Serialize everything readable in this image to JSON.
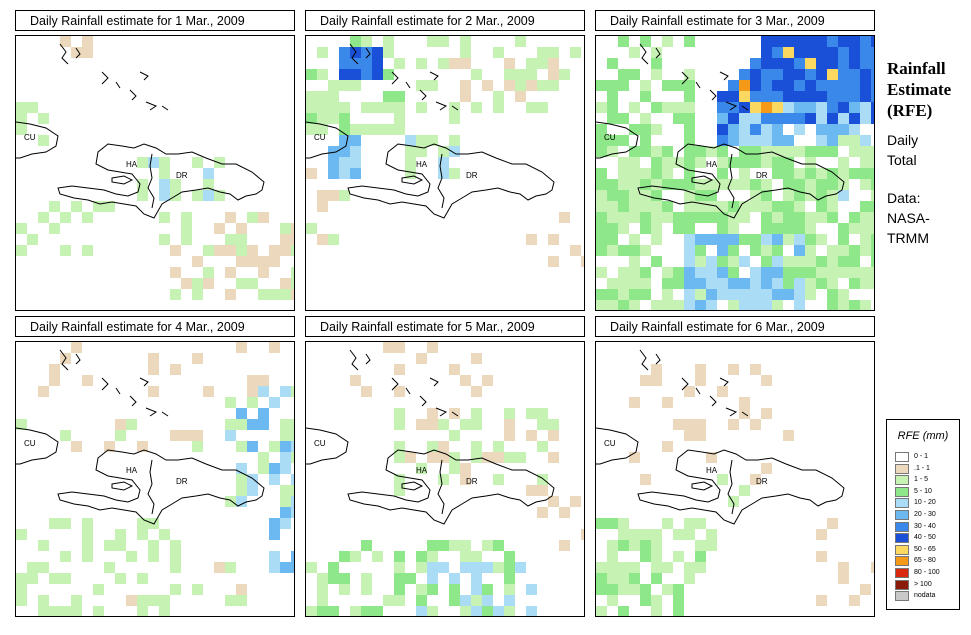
{
  "panels": [
    {
      "title": "Daily Rainfall estimate for  1 Mar., 2009",
      "day": 1
    },
    {
      "title": "Daily Rainfall estimate for  2 Mar., 2009",
      "day": 2
    },
    {
      "title": "Daily Rainfall estimate for  3 Mar., 2009",
      "day": 3
    },
    {
      "title": "Daily Rainfall estimate for  4 Mar., 2009",
      "day": 4
    },
    {
      "title": "Daily Rainfall estimate for  5 Mar., 2009",
      "day": 5
    },
    {
      "title": "Daily Rainfall estimate for  6 Mar., 2009",
      "day": 6
    }
  ],
  "map_labels": {
    "cuba": "CU",
    "haiti": "HA",
    "dominican_republic": "DR"
  },
  "side": {
    "title_line1": "Rainfall",
    "title_line2": "Estimate",
    "title_line3": "(RFE)",
    "period_line1": "Daily",
    "period_line2": "Total",
    "source_line1": "Data:",
    "source_line2": "NASA-",
    "source_line3": "TRMM"
  },
  "legend": {
    "title": "RFE (mm)",
    "classes": [
      {
        "label": "0 - 1",
        "color": "#ffffff"
      },
      {
        "label": ".1 - 1",
        "color": "#ecd9bd"
      },
      {
        "label": "1 - 5",
        "color": "#c6f2b4"
      },
      {
        "label": "5 - 10",
        "color": "#8ee88a"
      },
      {
        "label": "10 - 20",
        "color": "#aadcf5"
      },
      {
        "label": "20 - 30",
        "color": "#6cb8f0"
      },
      {
        "label": "30 - 40",
        "color": "#3a88ea"
      },
      {
        "label": "40 - 50",
        "color": "#1a50d8"
      },
      {
        "label": "50 - 65",
        "color": "#fbd860"
      },
      {
        "label": "65 - 80",
        "color": "#f59a18"
      },
      {
        "label": "80 - 100",
        "color": "#d82810"
      },
      {
        "label": "> 100",
        "color": "#8a1a0a"
      },
      {
        "label": "nodata",
        "color": "#c8c8c8"
      }
    ]
  }
}
